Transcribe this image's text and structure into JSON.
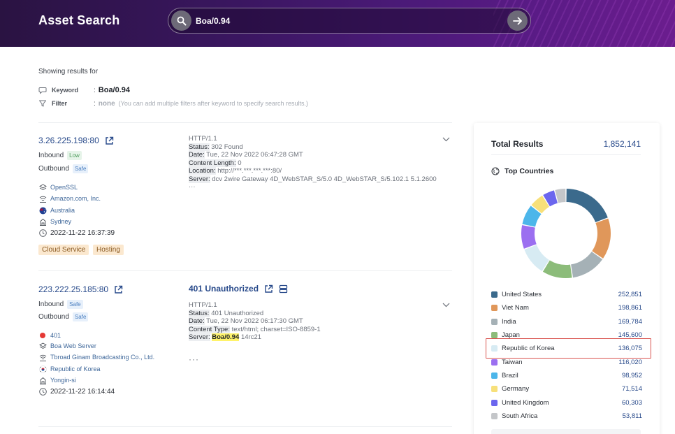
{
  "header": {
    "title": "Asset Search"
  },
  "search": {
    "value": "Boa/0.94"
  },
  "summary": {
    "showing": "Showing results for",
    "keyword_label": "Keyword",
    "keyword_value": "Boa/0.94",
    "filter_label": "Filter",
    "filter_value": "none",
    "filter_hint": "(You can add multiple filters after keyword to specify search results.)",
    "colon": ":"
  },
  "results": [
    {
      "ip": "3.26.225.198:80",
      "inbound_label": "Inbound",
      "inbound_badge": "Low",
      "outbound_label": "Outbound",
      "outbound_badge": "Safe",
      "software": "OpenSSL",
      "org": "Amazon.com, Inc.",
      "country": "Australia",
      "city": "Sydney",
      "timestamp": "2022-11-22 16:37:39",
      "tags": [
        "Cloud Service",
        "Hosting"
      ],
      "banner": {
        "l1": "HTTP/1.1",
        "l2k": "Status:",
        "l2v": " 302 Found",
        "l3k": "Date:",
        "l3v": " Tue, 22 Nov 2022 06:47:28 GMT",
        "l4k": "Content Length:",
        "l4v": " 0",
        "l5k": "Location:",
        "l5v": " http://***.***.***.***:80/",
        "l6k": "Server:",
        "l6v": " dcv 2wire Gateway 4D_WebSTAR_S/5.0 4D_WebSTAR_S/5.102.1 5.1.2600",
        "more": "···"
      }
    },
    {
      "ip": "223.222.25.185:80",
      "title": "401 Unauthorized",
      "inbound_label": "Inbound",
      "inbound_badge": "Safe",
      "outbound_label": "Outbound",
      "outbound_badge": "Safe",
      "status": "401",
      "software": "Boa Web Server",
      "org": "Tbroad Ginam Broadcasting Co., Ltd.",
      "country": "Republic of Korea",
      "city": "Yongin-si",
      "timestamp": "2022-11-22 16:14:44",
      "banner": {
        "l1": "HTTP/1.1",
        "l2k": "Status:",
        "l2v": " 401 Unauthorized",
        "l3k": "Date:",
        "l3v": " Tue, 22 Nov 2022 06:17:30 GMT",
        "l4k": "Content Type:",
        "l4v": " text/html; charset=ISO-8859-1",
        "l5k": "Server:",
        "l5hl": "Boa/0.94",
        "l5v": " 14rc21",
        "more": "···"
      }
    }
  ],
  "panel": {
    "total_label": "Total Results",
    "total_value": "1,852,141",
    "top_label": "Top Countries",
    "countries": [
      {
        "name": "United States",
        "count": "252,851",
        "value": 252851,
        "color": "#3b6a8c"
      },
      {
        "name": "Viet Nam",
        "count": "198,861",
        "value": 198861,
        "color": "#e0975a"
      },
      {
        "name": "India",
        "count": "169,784",
        "value": 169784,
        "color": "#a5b1b6"
      },
      {
        "name": "Japan",
        "count": "145,600",
        "value": 145600,
        "color": "#8cbc7a"
      },
      {
        "name": "Republic of Korea",
        "count": "136,075",
        "value": 136075,
        "color": "#d7ebf3"
      },
      {
        "name": "Taiwan",
        "count": "116,020",
        "value": 116020,
        "color": "#9b6ff0"
      },
      {
        "name": "Brazil",
        "count": "98,952",
        "value": 98952,
        "color": "#4cb6ea"
      },
      {
        "name": "Germany",
        "count": "71,514",
        "value": 71514,
        "color": "#f7e07a"
      },
      {
        "name": "United Kingdom",
        "count": "60,303",
        "value": 60303,
        "color": "#6b66ee"
      },
      {
        "name": "South Africa",
        "count": "53,811",
        "value": 53811,
        "color": "#c4c6c9"
      }
    ]
  }
}
